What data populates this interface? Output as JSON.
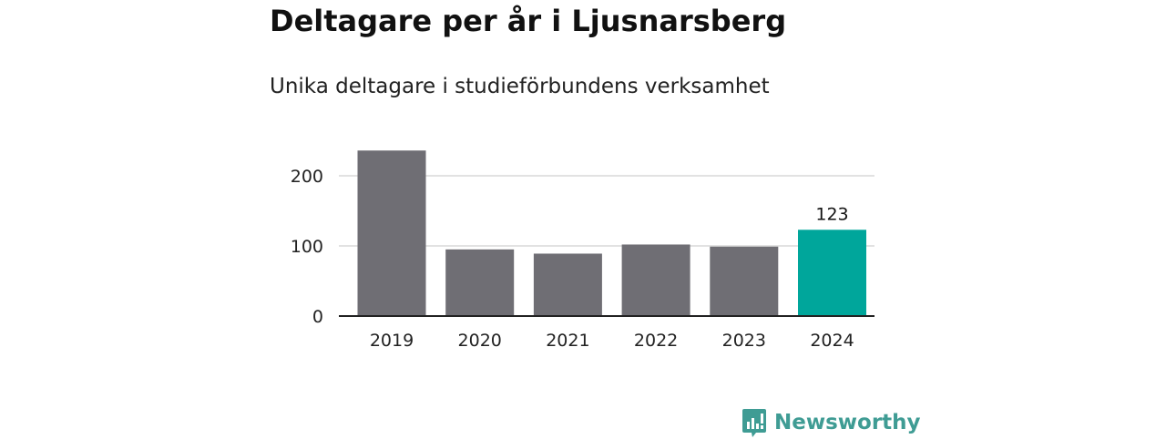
{
  "header": {
    "title": "Deltagare per år i Ljusnarsberg",
    "subtitle": "Unika deltagare i studieförbundens verksamhet"
  },
  "brand": {
    "name": "Newsworthy",
    "icon": "newsworthy-logo-icon",
    "color": "#3f9c94"
  },
  "chart_data": {
    "type": "bar",
    "title": "Deltagare per år i Ljusnarsberg",
    "subtitle": "Unika deltagare i studieförbundens verksamhet",
    "categories": [
      "2019",
      "2020",
      "2021",
      "2022",
      "2023",
      "2024"
    ],
    "values": [
      236,
      95,
      89,
      102,
      99,
      123
    ],
    "highlight_index": 5,
    "highlight_label": "123",
    "colors": {
      "default": "#6f6e74",
      "highlight": "#00a69b",
      "grid": "#d9d9d9",
      "axis": "#222222"
    },
    "yticks": [
      "0",
      "100",
      "200"
    ],
    "ylim": [
      0,
      240
    ],
    "grid": true,
    "legend": "none",
    "xlabel": "",
    "ylabel": ""
  }
}
